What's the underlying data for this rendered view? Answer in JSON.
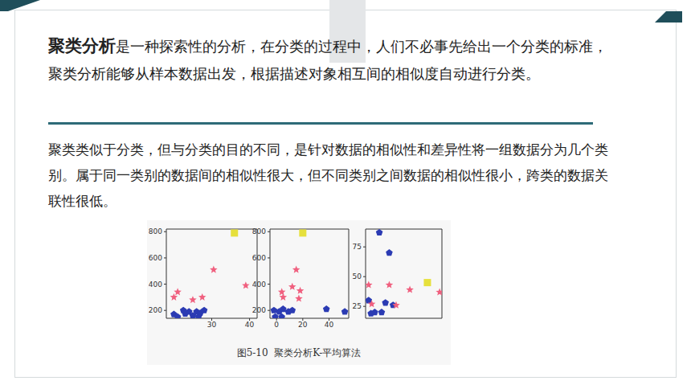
{
  "title_bold": "聚类分析",
  "paragraph1_rest": "是一种探索性的分析，在分类的过程中，人们不必事先给出一个分类的标准，聚类分析能够从样本数据出发，根据描述对象相互间的相似度自动进行分类。",
  "paragraph2": "聚类类似于分类，但与分类的目的不同，是针对数据的相似性和差异性将一组数据分为几个类别。属于同一类别的数据间的相似性很大，但不同类别之间数据的相似性很小，跨类的数据关联性很低。",
  "caption": "图5-10  聚类分析K-平均算法",
  "chart_data": [
    {
      "type": "scatter",
      "xlim": [
        18,
        42
      ],
      "xticks": [
        30,
        40
      ],
      "ylim": [
        140,
        820
      ],
      "yticks": [
        200,
        400,
        600,
        800
      ],
      "series": [
        {
          "color": "#2b3bb3",
          "marker": "pentagon",
          "x": [
            20,
            21,
            22.5,
            23,
            24,
            25,
            26,
            26.5,
            27,
            28
          ],
          "y": [
            170,
            150,
            200,
            175,
            190,
            160,
            190,
            150,
            180,
            200
          ]
        },
        {
          "color": "#f0607f",
          "marker": "star",
          "x": [
            20,
            21,
            25,
            27.5,
            30.5,
            39
          ],
          "y": [
            300,
            340,
            280,
            300,
            510,
            390
          ]
        },
        {
          "color": "#e6e03c",
          "marker": "square",
          "x": [
            36
          ],
          "y": [
            790
          ]
        }
      ]
    },
    {
      "type": "scatter",
      "xlim": [
        -5,
        55
      ],
      "xticks": [
        0,
        20,
        40
      ],
      "ylim": [
        140,
        820
      ],
      "yticks": [
        200,
        400,
        600,
        800
      ],
      "series": [
        {
          "color": "#2b3bb3",
          "marker": "pentagon",
          "x": [
            -2,
            -1,
            2,
            4,
            5,
            9,
            12,
            38,
            52
          ],
          "y": [
            200,
            150,
            190,
            150,
            210,
            190,
            200,
            210,
            190
          ]
        },
        {
          "color": "#f0607f",
          "marker": "star",
          "x": [
            4,
            5,
            12,
            15,
            17,
            18
          ],
          "y": [
            340,
            300,
            380,
            510,
            290,
            350
          ]
        },
        {
          "color": "#e6e03c",
          "marker": "square",
          "x": [
            20
          ],
          "y": [
            790
          ]
        }
      ]
    },
    {
      "type": "scatter",
      "xlim": [
        0,
        100
      ],
      "xticks": [],
      "ylim": [
        15,
        90
      ],
      "yticks": [
        25,
        50,
        75
      ],
      "tick_labels": "y",
      "series": [
        {
          "color": "#2b3bb3",
          "marker": "pentagon",
          "x": [
            18,
            31,
            4,
            12,
            7,
            21,
            26,
            36
          ],
          "y": [
            87,
            70,
            30,
            20,
            19,
            20,
            28,
            26
          ]
        },
        {
          "color": "#f0607f",
          "marker": "star",
          "x": [
            4,
            8,
            31,
            40,
            58,
            97
          ],
          "y": [
            43,
            27,
            43,
            26,
            39,
            37
          ]
        },
        {
          "color": "#e6e03c",
          "marker": "square",
          "x": [
            81
          ],
          "y": [
            45
          ]
        }
      ]
    }
  ]
}
